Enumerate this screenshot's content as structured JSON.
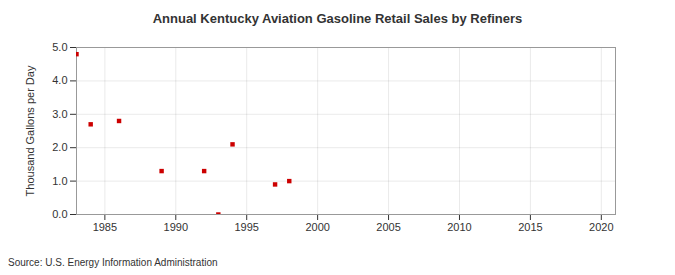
{
  "chart_data": {
    "type": "scatter",
    "title": "Annual Kentucky Aviation Gasoline Retail Sales by Refiners",
    "y_label": "Thousand Gallons per Day",
    "source": "Source: U.S. Energy Information Administration",
    "x": [
      1983,
      1984,
      1986,
      1989,
      1992,
      1993,
      1994,
      1997,
      1998
    ],
    "values": [
      4.8,
      2.7,
      2.8,
      1.3,
      1.3,
      0.0,
      2.1,
      0.9,
      1.0
    ],
    "color": "#cc0000",
    "marker": "square",
    "xlim": [
      1983,
      2021
    ],
    "xticks": [
      1985,
      1990,
      1995,
      2000,
      2005,
      2010,
      2015,
      2020
    ],
    "ylim": [
      0,
      5
    ],
    "yticks": [
      0,
      1,
      2,
      3,
      4,
      5
    ],
    "grid": true
  }
}
